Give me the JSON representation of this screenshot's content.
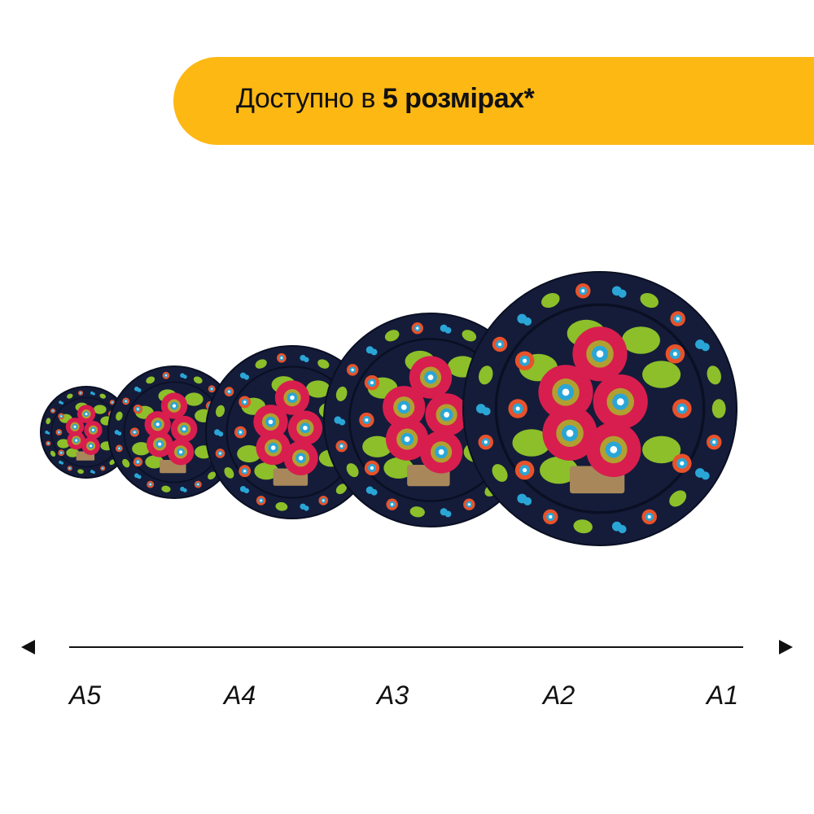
{
  "banner": {
    "text_regular": "Доступно в ",
    "text_bold": "5 розмірах*",
    "color": "#FDB813"
  },
  "plates": [
    {
      "size": "A5"
    },
    {
      "size": "A4"
    },
    {
      "size": "A3"
    },
    {
      "size": "A2"
    },
    {
      "size": "A1"
    }
  ],
  "plate_colors": {
    "base": "#141c3a",
    "rose": "#d81e4e",
    "orange": "#e8522a",
    "blue": "#2aa6d6",
    "leaf": "#8cbf2a",
    "basket": "#a8875a"
  },
  "scale": {
    "labels": [
      "A5",
      "A4",
      "A3",
      "A2",
      "A1"
    ],
    "left_arrow_icon": "triangle-left",
    "right_arrow_icon": "triangle-right"
  }
}
